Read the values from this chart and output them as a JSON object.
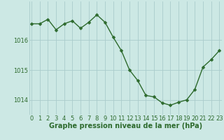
{
  "x": [
    0,
    1,
    2,
    3,
    4,
    5,
    6,
    7,
    8,
    9,
    10,
    11,
    12,
    13,
    14,
    15,
    16,
    17,
    18,
    19,
    20,
    21,
    22,
    23
  ],
  "y": [
    1016.55,
    1016.55,
    1016.7,
    1016.35,
    1016.55,
    1016.65,
    1016.4,
    1016.6,
    1016.85,
    1016.6,
    1016.1,
    1015.65,
    1015.0,
    1014.65,
    1014.15,
    1014.1,
    1013.9,
    1013.82,
    1013.92,
    1014.0,
    1014.35,
    1015.1,
    1015.35,
    1015.65
  ],
  "line_color": "#2d6a2d",
  "marker_color": "#2d6a2d",
  "bg_color": "#cce8e4",
  "grid_color": "#aacccc",
  "axis_color": "#2d6a2d",
  "xlabel": "Graphe pression niveau de la mer (hPa)",
  "yticks": [
    1014,
    1015,
    1016
  ],
  "xticks": [
    0,
    1,
    2,
    3,
    4,
    5,
    6,
    7,
    8,
    9,
    10,
    11,
    12,
    13,
    14,
    15,
    16,
    17,
    18,
    19,
    20,
    21,
    22,
    23
  ],
  "ylim": [
    1013.5,
    1017.3
  ],
  "xlim": [
    -0.3,
    23.3
  ],
  "tick_fontsize": 6,
  "label_fontsize": 7
}
